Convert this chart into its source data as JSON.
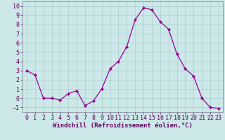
{
  "x": [
    0,
    1,
    2,
    3,
    4,
    5,
    6,
    7,
    8,
    9,
    10,
    11,
    12,
    13,
    14,
    15,
    16,
    17,
    18,
    19,
    20,
    21,
    22,
    23
  ],
  "y": [
    3,
    2.5,
    0,
    0,
    -0.2,
    0.5,
    0.8,
    -0.8,
    -0.3,
    1,
    3.2,
    4,
    5.6,
    8.5,
    9.8,
    9.6,
    8.3,
    7.5,
    4.8,
    3.2,
    2.4,
    0,
    -1,
    -1.1
  ],
  "line_color": "#990099",
  "marker": "D",
  "marker_size": 2.2,
  "bg_color": "#cce8e8",
  "grid_color": "#aacccc",
  "xlabel": "Windchill (Refroidissement éolien,°C)",
  "ylim": [
    -1.5,
    10.5
  ],
  "xlim": [
    -0.5,
    23.5
  ],
  "yticks": [
    -1,
    0,
    1,
    2,
    3,
    4,
    5,
    6,
    7,
    8,
    9,
    10
  ],
  "xticks": [
    0,
    1,
    2,
    3,
    4,
    5,
    6,
    7,
    8,
    9,
    10,
    11,
    12,
    13,
    14,
    15,
    16,
    17,
    18,
    19,
    20,
    21,
    22,
    23
  ],
  "xlabel_fontsize": 6.5,
  "tick_fontsize": 6.0,
  "line_width": 0.9,
  "spine_color": "#888899",
  "font_color": "#660066"
}
